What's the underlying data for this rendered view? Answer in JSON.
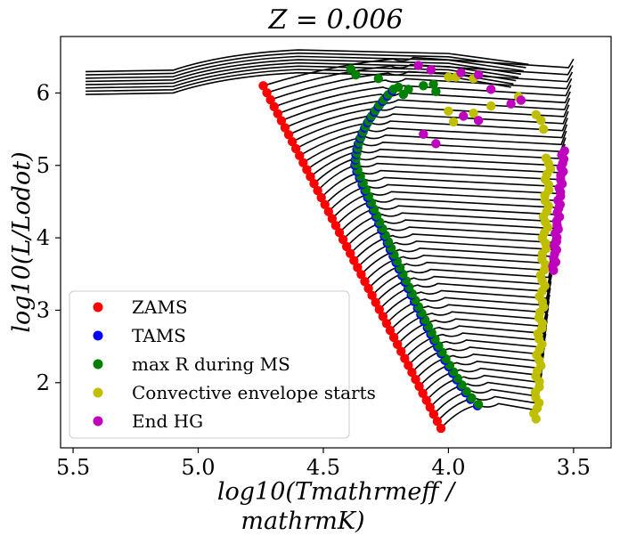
{
  "chart_data": {
    "type": "scatter",
    "title": "Z = 0.006",
    "xlabel_line1": "log10(Tmathrmeff /",
    "xlabel_line2": "mathrmK)",
    "ylabel": "log10(L/Lodot)",
    "xlim": [
      5.55,
      3.35
    ],
    "ylim": [
      1.1,
      6.78
    ],
    "x_ticks": [
      {
        "value": 5.5,
        "label": "5.5"
      },
      {
        "value": 5.0,
        "label": "5.0"
      },
      {
        "value": 4.5,
        "label": "4.5"
      },
      {
        "value": 4.0,
        "label": "4.0"
      },
      {
        "value": 3.5,
        "label": "3.5"
      }
    ],
    "y_ticks": [
      {
        "value": 2,
        "label": "2"
      },
      {
        "value": 3,
        "label": "3"
      },
      {
        "value": 4,
        "label": "4"
      },
      {
        "value": 5,
        "label": "5"
      },
      {
        "value": 6,
        "label": "6"
      }
    ],
    "legend_position": "lower-left",
    "grid": false,
    "series": [
      {
        "name": "ZAMS",
        "color": "#ff0000"
      },
      {
        "name": "TAMS",
        "color": "#0000ff"
      },
      {
        "name": "max R during MS",
        "color": "#008000"
      },
      {
        "name": "Convective envelope starts",
        "color": "#bfbf00"
      },
      {
        "name": "End HG",
        "color": "#bf00bf"
      }
    ],
    "zams": {
      "x_start": 4.03,
      "y_start": 1.37,
      "x_end": 4.74,
      "y_end": 6.1,
      "count": 50
    },
    "tams_ms_max": {
      "x_bottom": 3.88,
      "y_bottom": 1.7,
      "x_knee": 4.37,
      "y_knee": 5.0,
      "x_top": 4.22,
      "y_top": 6.05,
      "count": 52
    },
    "conv_env": {
      "x_bottom": 3.65,
      "y_bottom": 1.5,
      "x_top": 3.6,
      "y_top": 5.1,
      "count": 50
    },
    "end_hg": {
      "x_bottom": 3.58,
      "y_bottom": 3.55,
      "x_top": 3.54,
      "y_top": 5.2,
      "count": 30
    },
    "upper_points": {
      "yellow": [
        [
          4.0,
          6.22
        ],
        [
          3.97,
          6.22
        ],
        [
          3.9,
          6.2
        ],
        [
          4.0,
          5.75
        ],
        [
          3.98,
          5.6
        ],
        [
          3.83,
          5.82
        ],
        [
          3.72,
          5.95
        ],
        [
          3.65,
          5.7
        ],
        [
          3.63,
          5.62
        ],
        [
          3.62,
          5.5
        ],
        [
          3.9,
          5.72
        ]
      ],
      "magenta": [
        [
          4.12,
          6.38
        ],
        [
          4.07,
          6.32
        ],
        [
          3.95,
          6.28
        ],
        [
          3.88,
          6.25
        ],
        [
          3.83,
          6.05
        ],
        [
          3.71,
          5.9
        ],
        [
          3.75,
          5.85
        ],
        [
          4.1,
          5.43
        ],
        [
          4.05,
          5.3
        ],
        [
          3.94,
          5.68
        ],
        [
          3.88,
          5.62
        ]
      ],
      "green": [
        [
          4.39,
          6.33
        ],
        [
          4.37,
          6.25
        ],
        [
          4.28,
          6.2
        ],
        [
          4.2,
          6.08
        ],
        [
          4.16,
          6.05
        ],
        [
          4.1,
          6.1
        ],
        [
          4.06,
          6.12
        ],
        [
          4.18,
          5.98
        ],
        [
          4.05,
          6.02
        ]
      ]
    }
  }
}
